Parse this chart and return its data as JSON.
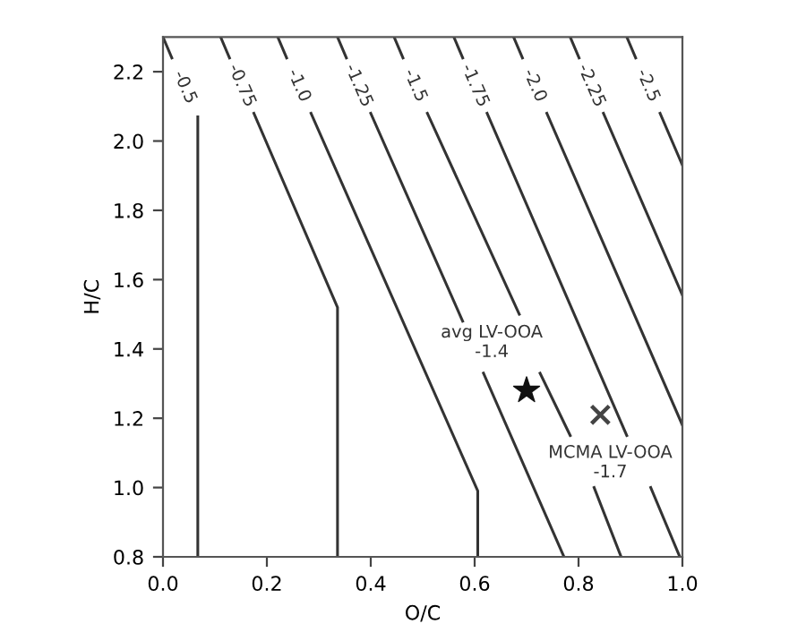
{
  "chart_data": {
    "type": "line",
    "xlabel": "O/C",
    "ylabel": "H/C",
    "xlim": [
      0.0,
      1.0
    ],
    "ylim": [
      0.8,
      2.3
    ],
    "xticks": [
      {
        "value": 0.0,
        "label": "0.0"
      },
      {
        "value": 0.2,
        "label": "0.2"
      },
      {
        "value": 0.4,
        "label": "0.4"
      },
      {
        "value": 0.6,
        "label": "0.6"
      },
      {
        "value": 0.8,
        "label": "0.8"
      },
      {
        "value": 1.0,
        "label": "1.0"
      }
    ],
    "yticks": [
      {
        "value": 0.8,
        "label": "0.8"
      },
      {
        "value": 1.0,
        "label": "1.0"
      },
      {
        "value": 1.2,
        "label": "1.2"
      },
      {
        "value": 1.4,
        "label": "1.4"
      },
      {
        "value": 1.6,
        "label": "1.6"
      },
      {
        "value": 1.8,
        "label": "1.8"
      },
      {
        "value": 2.0,
        "label": "2.0"
      },
      {
        "value": 2.2,
        "label": "2.2"
      }
    ],
    "grid": false,
    "legend": false,
    "marker": "none",
    "line_style": "solid",
    "series": [
      {
        "name": "-0.5",
        "color": "#333333",
        "x": [
          0.0,
          0.017,
          null,
          0.067,
          0.067
        ],
        "values": [
          2.3,
          2.24,
          null,
          2.07,
          0.8
        ]
      },
      {
        "name": "-0.75",
        "color": "#333333",
        "x": [
          0.111,
          0.128,
          null,
          0.175,
          0.336,
          0.336
        ],
        "values": [
          2.3,
          2.24,
          null,
          2.08,
          1.52,
          0.8
        ]
      },
      {
        "name": "-1.0",
        "color": "#333333",
        "x": [
          0.221,
          0.238,
          null,
          0.285,
          0.606,
          0.606
        ],
        "values": [
          2.3,
          2.24,
          null,
          2.08,
          0.99,
          0.8
        ]
      },
      {
        "name": "-1.25",
        "color": "#333333",
        "x": [
          0.336,
          0.353,
          null,
          0.4,
          0.577,
          null,
          0.617,
          0.772
        ],
        "values": [
          2.3,
          2.24,
          null,
          2.08,
          1.48,
          null,
          1.33,
          0.8
        ]
      },
      {
        "name": "-1.5",
        "color": "#333333",
        "x": [
          0.445,
          0.462,
          null,
          0.509,
          0.686,
          null,
          0.726,
          0.784,
          null,
          0.83,
          0.882
        ],
        "values": [
          2.3,
          2.24,
          null,
          2.08,
          1.5,
          null,
          1.33,
          1.15,
          null,
          1.0,
          0.8
        ]
      },
      {
        "name": "-1.75",
        "color": "#333333",
        "x": [
          0.56,
          0.577,
          null,
          0.624,
          0.893,
          null,
          0.939,
          0.995
        ],
        "values": [
          2.3,
          2.24,
          null,
          2.08,
          1.15,
          null,
          1.0,
          0.8
        ]
      },
      {
        "name": "-2.0",
        "color": "#333333",
        "x": [
          0.675,
          0.692,
          null,
          0.739,
          1.0
        ],
        "values": [
          2.3,
          2.24,
          null,
          2.08,
          1.18
        ]
      },
      {
        "name": "-2.25",
        "color": "#333333",
        "x": [
          0.784,
          0.801,
          null,
          0.848,
          1.0
        ],
        "values": [
          2.3,
          2.24,
          null,
          2.08,
          1.555
        ]
      },
      {
        "name": "-2.5",
        "color": "#333333",
        "x": [
          0.893,
          0.91,
          null,
          0.957,
          1.0
        ],
        "values": [
          2.3,
          2.24,
          null,
          2.08,
          1.93
        ]
      },
      {
        "type": "scatter",
        "marker": "star",
        "color": "#111111",
        "x": [
          0.7
        ],
        "values": [
          1.28
        ]
      },
      {
        "type": "scatter",
        "marker": "cross",
        "color": "#444444",
        "x": [
          0.842
        ],
        "values": [
          1.21
        ]
      }
    ],
    "annotations": [
      {
        "text": "avg LV-OOA\n-1.4",
        "x": 0.7,
        "y": 1.28
      },
      {
        "text": "MCMA LV-OOA\n-1.7",
        "x": 0.842,
        "y": 1.21
      }
    ]
  }
}
